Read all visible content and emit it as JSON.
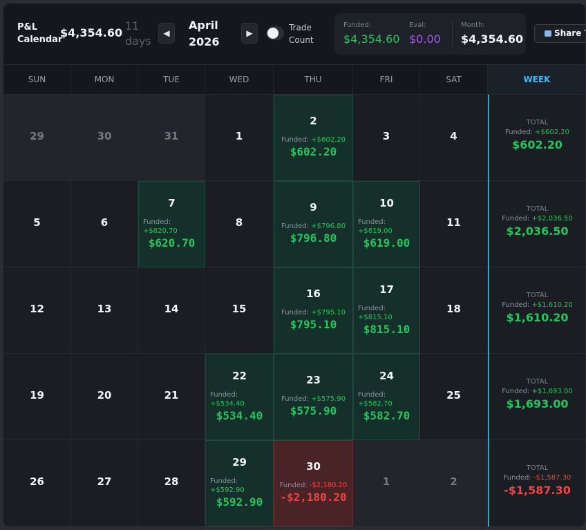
{
  "header": {
    "title_line1": "P&L",
    "title_line2": "Calendar",
    "total": "$4,354.60",
    "days_count": "11",
    "days_label": "days",
    "month": "April",
    "year": "2026",
    "prev_icon": "triangle-left",
    "next_icon": "triangle-right",
    "toggle_label_1": "Trade",
    "toggle_label_2": "Count",
    "toggle_on": false,
    "stats": {
      "funded_label": "Funded:",
      "funded_value": "$4,354.60",
      "eval_label": "Eval:",
      "eval_value": "$0.00",
      "month_label": "Month:",
      "month_value": "$4,354.60"
    },
    "share_label": "Share T"
  },
  "weekdays": [
    "SUN",
    "MON",
    "TUE",
    "WED",
    "THU",
    "FRI",
    "SAT",
    "WEEK"
  ],
  "colors": {
    "positive": "#22c55e",
    "negative": "#ef4444",
    "eval": "#a855f7",
    "accent": "#38bdf8"
  },
  "weeks": [
    {
      "days": [
        {
          "day": "29",
          "other": true
        },
        {
          "day": "30",
          "other": true
        },
        {
          "day": "31",
          "other": true
        },
        {
          "day": "1"
        },
        {
          "day": "2",
          "status": "pos",
          "funded_label": "Funded:",
          "funded": "+$602.20",
          "pl": "$602.20"
        },
        {
          "day": "3"
        },
        {
          "day": "4"
        }
      ],
      "week": {
        "total_label": "TOTAL",
        "funded_label": "Funded:",
        "funded": "+$602.20",
        "total": "$602.20"
      }
    },
    {
      "days": [
        {
          "day": "5"
        },
        {
          "day": "6"
        },
        {
          "day": "7",
          "status": "pos",
          "funded_label": "Funded:",
          "funded": "+$620.70",
          "pl": "$620.70"
        },
        {
          "day": "8"
        },
        {
          "day": "9",
          "status": "pos",
          "funded_label": "Funded:",
          "funded": "+$796.80",
          "pl": "$796.80"
        },
        {
          "day": "10",
          "status": "pos",
          "funded_label": "Funded:",
          "funded": "+$619.00",
          "pl": "$619.00"
        },
        {
          "day": "11"
        }
      ],
      "week": {
        "total_label": "TOTAL",
        "funded_label": "Funded:",
        "funded": "+$2,036.50",
        "total": "$2,036.50"
      }
    },
    {
      "days": [
        {
          "day": "12"
        },
        {
          "day": "13"
        },
        {
          "day": "14"
        },
        {
          "day": "15"
        },
        {
          "day": "16",
          "status": "pos",
          "funded_label": "Funded:",
          "funded": "+$795.10",
          "pl": "$795.10"
        },
        {
          "day": "17",
          "status": "pos",
          "funded_label": "Funded:",
          "funded": "+$815.10",
          "pl": "$815.10"
        },
        {
          "day": "18"
        }
      ],
      "week": {
        "total_label": "TOTAL",
        "funded_label": "Funded:",
        "funded": "+$1,610.20",
        "total": "$1,610.20"
      }
    },
    {
      "days": [
        {
          "day": "19"
        },
        {
          "day": "20"
        },
        {
          "day": "21"
        },
        {
          "day": "22",
          "status": "pos",
          "funded_label": "Funded:",
          "funded": "+$534.40",
          "pl": "$534.40"
        },
        {
          "day": "23",
          "status": "pos",
          "funded_label": "Funded:",
          "funded": "+$575.90",
          "pl": "$575.90"
        },
        {
          "day": "24",
          "status": "pos",
          "funded_label": "Funded:",
          "funded": "+$582.70",
          "pl": "$582.70"
        },
        {
          "day": "25"
        }
      ],
      "week": {
        "total_label": "TOTAL",
        "funded_label": "Funded:",
        "funded": "+$1,693.00",
        "total": "$1,693.00"
      }
    },
    {
      "days": [
        {
          "day": "26"
        },
        {
          "day": "27"
        },
        {
          "day": "28"
        },
        {
          "day": "29",
          "status": "pos",
          "funded_label": "Funded:",
          "funded": "+$592.90",
          "pl": "$592.90"
        },
        {
          "day": "30",
          "status": "neg",
          "funded_label": "Funded:",
          "funded": "-$2,180.20",
          "pl": "-$2,180.20"
        },
        {
          "day": "1",
          "other": true
        },
        {
          "day": "2",
          "other": true
        }
      ],
      "week": {
        "total_label": "TOTAL",
        "funded_label": "Funded:",
        "funded": "-$1,587.30",
        "total": "-$1,587.30",
        "status": "neg"
      }
    }
  ]
}
